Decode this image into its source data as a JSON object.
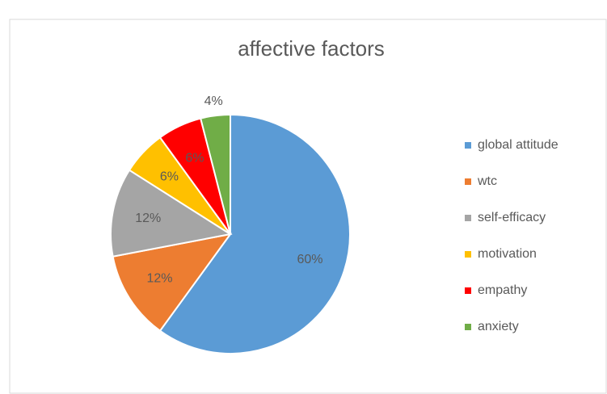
{
  "chart_data": {
    "type": "pie",
    "title": "affective factors",
    "categories": [
      "global attitude",
      "wtc",
      "self-efficacy",
      "motivation",
      "empathy",
      "anxiety"
    ],
    "values": [
      60,
      12,
      12,
      6,
      6,
      4
    ],
    "value_labels": [
      "60%",
      "12%",
      "12%",
      "6%",
      "6%",
      "4%"
    ],
    "colors": [
      "#5b9bd5",
      "#ed7d31",
      "#a5a5a5",
      "#ffc000",
      "#ff0000",
      "#70ad47"
    ],
    "legend": "right"
  }
}
